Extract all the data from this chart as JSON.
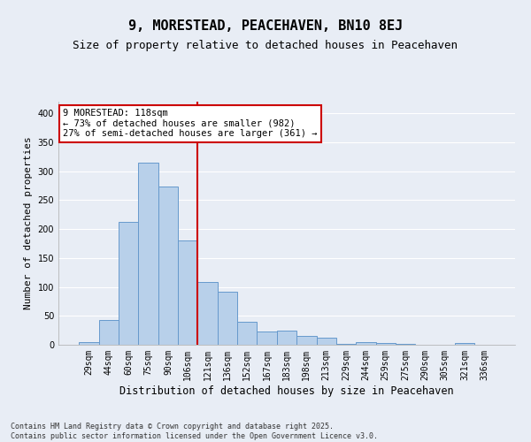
{
  "title": "9, MORESTEAD, PEACEHAVEN, BN10 8EJ",
  "subtitle": "Size of property relative to detached houses in Peacehaven",
  "xlabel": "Distribution of detached houses by size in Peacehaven",
  "ylabel": "Number of detached properties",
  "categories": [
    "29sqm",
    "44sqm",
    "60sqm",
    "75sqm",
    "90sqm",
    "106sqm",
    "121sqm",
    "136sqm",
    "152sqm",
    "167sqm",
    "183sqm",
    "198sqm",
    "213sqm",
    "229sqm",
    "244sqm",
    "259sqm",
    "275sqm",
    "290sqm",
    "305sqm",
    "321sqm",
    "336sqm"
  ],
  "values": [
    4,
    43,
    212,
    315,
    273,
    180,
    109,
    91,
    39,
    23,
    24,
    15,
    12,
    2,
    5,
    3,
    1,
    0,
    0,
    3,
    0
  ],
  "bar_color": "#b8d0ea",
  "bar_edge_color": "#6699cc",
  "annotation_text": "9 MORESTEAD: 118sqm\n← 73% of detached houses are smaller (982)\n27% of semi-detached houses are larger (361) →",
  "annotation_box_color": "#ffffff",
  "annotation_box_edge": "#cc0000",
  "vline_color": "#cc0000",
  "vline_x": 5.5,
  "ylim": [
    0,
    420
  ],
  "yticks": [
    0,
    50,
    100,
    150,
    200,
    250,
    300,
    350,
    400
  ],
  "footnote": "Contains HM Land Registry data © Crown copyright and database right 2025.\nContains public sector information licensed under the Open Government Licence v3.0.",
  "background_color": "#e8edf5",
  "grid_color": "#ffffff",
  "title_fontsize": 11,
  "subtitle_fontsize": 9,
  "ylabel_fontsize": 8,
  "xlabel_fontsize": 8.5,
  "tick_fontsize": 7,
  "annot_fontsize": 7.5,
  "footnote_fontsize": 6
}
